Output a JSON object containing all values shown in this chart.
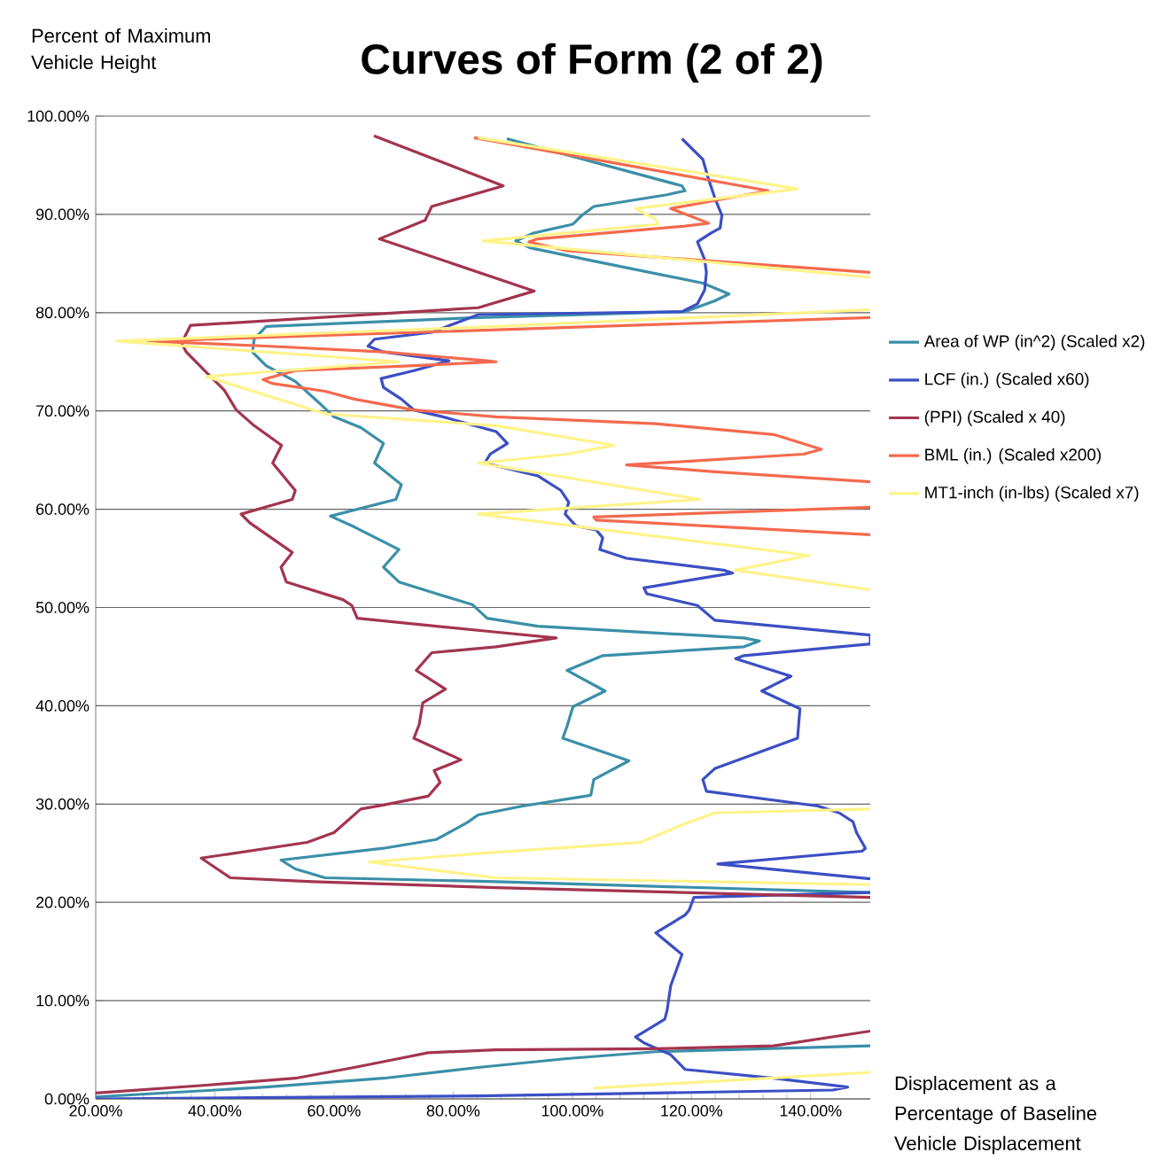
{
  "chart_data": {
    "type": "line",
    "title": "Curves of Form (2 of 2)",
    "ylabel": "Percent of Maximum Vehicle Height",
    "xlabel": "Displacement as a Percentage of Baseline Vehicle Displacement",
    "xlim": [
      20,
      150
    ],
    "ylim": [
      0,
      100
    ],
    "xticks": [
      {
        "value": 20,
        "label": "20.00%"
      },
      {
        "value": 40,
        "label": "40.00%"
      },
      {
        "value": 60,
        "label": "60.00%"
      },
      {
        "value": 80,
        "label": "80.00%"
      },
      {
        "value": 100,
        "label": "100.00%"
      },
      {
        "value": 120,
        "label": "120.00%"
      },
      {
        "value": 140,
        "label": "140.00%"
      }
    ],
    "yticks": [
      {
        "value": 0,
        "label": "0.00%"
      },
      {
        "value": 10,
        "label": "10.00%"
      },
      {
        "value": 20,
        "label": "20.00%"
      },
      {
        "value": 30,
        "label": "30.00%"
      },
      {
        "value": 40,
        "label": "40.00%"
      },
      {
        "value": 50,
        "label": "50.00%"
      },
      {
        "value": 60,
        "label": "60.00%"
      },
      {
        "value": 70,
        "label": "70.00%"
      },
      {
        "value": 80,
        "label": "80.00%"
      },
      {
        "value": 90,
        "label": "90.00%"
      },
      {
        "value": 100,
        "label": "100.00%"
      }
    ],
    "grid": "y",
    "legend": "right",
    "series": [
      {
        "name": "Area of WP (in^2) (Scaled x2)",
        "color": "#3a8fa8",
        "x": [
          89.0,
          118.4,
          118.9,
          115.9,
          103.6,
          101.6,
          100.1,
          93.5,
          90.5,
          92.9,
          104.0,
          121.9,
          126.3,
          123.9,
          118.9,
          84.2,
          48.6,
          46.6,
          46.3,
          48.6,
          53.5,
          57.9,
          60.0,
          64.5,
          68.3,
          66.8,
          71.3,
          70.4,
          59.4,
          63.4,
          70.9,
          68.3,
          70.9,
          78.3,
          83.2,
          85.7,
          94.2,
          128.8,
          131.4,
          128.8,
          105.1,
          99.1,
          105.5,
          100.1,
          99.1,
          98.4,
          109.5,
          103.6,
          103.1,
          91.7,
          84.2,
          82.3,
          77.2,
          68.3,
          51.1,
          53.5,
          58.5,
          87.2,
          150,
          null,
          150,
          114.0,
          99.1,
          84.2,
          68.3,
          48.6,
          20
        ],
        "values": [
          97.7,
          92.9,
          92.4,
          92.0,
          90.8,
          89.9,
          89.0,
          88.1,
          87.3,
          86.6,
          85.2,
          83.0,
          81.9,
          81.2,
          80.1,
          79.5,
          78.6,
          77.3,
          76.0,
          74.6,
          73.0,
          70.6,
          69.4,
          68.3,
          66.7,
          64.7,
          62.5,
          61.0,
          59.3,
          58.2,
          55.9,
          54.1,
          52.6,
          51.2,
          50.3,
          48.9,
          48.1,
          46.9,
          46.6,
          46.0,
          45.1,
          43.6,
          41.5,
          39.9,
          37.9,
          36.7,
          34.4,
          32.5,
          30.9,
          29.8,
          28.9,
          28.1,
          26.4,
          25.5,
          24.3,
          23.4,
          22.5,
          22.1,
          21.0,
          null,
          5.4,
          4.8,
          4.1,
          3.2,
          2.1,
          1.2,
          0.2
        ]
      },
      {
        "name": "LCF (in.) (Scaled x60)",
        "color": "#3b4fc4",
        "x": [
          118.4,
          121.9,
          122.9,
          123.9,
          125.1,
          124.8,
          123.3,
          121.0,
          122.2,
          122.5,
          122.2,
          121.0,
          118.4,
          84.2,
          76.4,
          66.8,
          65.7,
          68.3,
          79.3,
          73.4,
          67.9,
          68.3,
          71.3,
          73.4,
          78.3,
          87.2,
          89.1,
          86.2,
          85.3,
          94.2,
          98.1,
          99.4,
          98.8,
          100.6,
          104.0,
          105.1,
          104.6,
          109.1,
          125.4,
          126.9,
          112.0,
          112.5,
          121.0,
          123.9,
          150,
          150,
          128.8,
          127.4,
          136.7,
          131.8,
          138.2,
          137.8,
          123.9,
          121.9,
          122.5,
          141.2,
          144.8,
          147.1,
          147.7,
          149.2,
          148.6,
          124.4,
          150,
          null,
          150,
          120.4,
          119.6,
          118.9,
          114.0,
          118.4,
          116.5,
          115.9,
          115.5,
          110.6,
          112.0,
          116.5,
          118.9,
          133.8,
          146.2,
          143.7,
          114.0,
          84.2,
          20
        ],
        "values": [
          97.7,
          95.6,
          93.5,
          91.7,
          89.9,
          88.6,
          88.1,
          87.2,
          85.4,
          84.1,
          82.3,
          80.9,
          80.1,
          79.8,
          78.0,
          77.3,
          76.6,
          76.0,
          75.1,
          74.1,
          73.3,
          72.4,
          71.2,
          70.1,
          69.4,
          67.9,
          66.7,
          65.6,
          64.7,
          63.4,
          61.9,
          60.7,
          59.5,
          58.3,
          57.9,
          57.1,
          55.9,
          55.0,
          53.8,
          53.5,
          52.0,
          51.4,
          50.2,
          48.7,
          47.2,
          46.3,
          45.1,
          44.8,
          43.0,
          41.5,
          39.7,
          36.7,
          33.6,
          32.5,
          31.3,
          29.8,
          29.1,
          28.2,
          27.1,
          25.5,
          25.2,
          23.9,
          22.4,
          null,
          21.0,
          20.5,
          19.2,
          18.7,
          16.9,
          14.7,
          11.5,
          9.0,
          8.1,
          6.3,
          5.7,
          4.5,
          3.0,
          2.1,
          1.2,
          0.9,
          0.6,
          0.3,
          0
        ]
      },
      {
        "name": "(PPI) (Scaled x 40)",
        "color": "#a3344f",
        "x": [
          66.7,
          88.4,
          76.4,
          75.3,
          67.6,
          93.6,
          84.2,
          35.9,
          34.4,
          35.2,
          38.6,
          41.6,
          43.6,
          46.6,
          51.2,
          49.7,
          53.5,
          53.0,
          44.4,
          45.9,
          53.0,
          51.1,
          52.0,
          61.5,
          63.0,
          63.9,
          87.2,
          97.3,
          87.2,
          76.4,
          73.8,
          78.7,
          74.9,
          74.3,
          73.4,
          81.3,
          76.8,
          77.8,
          75.8,
          68.3,
          64.5,
          60.0,
          55.5,
          37.7,
          42.6,
          56.4,
          87.2,
          150,
          null,
          150,
          133.8,
          114.0,
          87.2,
          75.8,
          70.9,
          63.4,
          53.5,
          38.6,
          20
        ],
        "values": [
          98.0,
          92.9,
          90.8,
          89.4,
          87.5,
          82.2,
          80.5,
          78.7,
          76.9,
          76.0,
          73.9,
          72.1,
          70.1,
          68.5,
          66.5,
          64.7,
          61.9,
          61.0,
          59.5,
          58.6,
          55.6,
          54.1,
          52.6,
          50.8,
          50.2,
          48.9,
          47.5,
          46.9,
          46.0,
          45.4,
          43.6,
          41.7,
          40.3,
          38.1,
          36.7,
          34.5,
          33.4,
          32.2,
          30.8,
          29.9,
          29.5,
          27.1,
          26.1,
          24.5,
          22.5,
          22.1,
          21.5,
          20.5,
          null,
          6.9,
          5.4,
          5.1,
          5.0,
          4.7,
          4.1,
          3.2,
          2.1,
          1.4,
          0.6
        ]
      },
      {
        "name": "BML (in.) (Scaled x200)",
        "color": "#f46a4e",
        "x": [
          83.5,
          132.9,
          116.5,
          122.9,
          118.9,
          94.2,
          92.7,
          99.1,
          150,
          null,
          150,
          28.8,
          48.6,
          68.3,
          85.7,
          87.2,
          73.4,
          53.5,
          48.1,
          49.6,
          58.5,
          63.4,
          73.4,
          87.2,
          114.0,
          133.8,
          141.8,
          138.8,
          109.1,
          123.9,
          150,
          null,
          150,
          103.6,
          104.0,
          150
        ],
        "values": [
          97.8,
          92.4,
          90.6,
          89.1,
          88.8,
          87.5,
          87.2,
          86.3,
          84.1,
          null,
          79.5,
          77.1,
          76.6,
          76.0,
          75.1,
          75.0,
          74.6,
          74.1,
          73.2,
          72.8,
          72.0,
          71.2,
          70.1,
          69.4,
          68.7,
          67.6,
          66.1,
          65.6,
          64.5,
          63.8,
          62.8,
          null,
          60.2,
          59.2,
          58.9,
          57.4
        ]
      },
      {
        "name": "MT1-inch (in-lbs) (Scaled x7)",
        "color": "#fff38a",
        "x": [
          84.2,
          137.8,
          110.6,
          114.0,
          114.4,
          85.0,
          150,
          null,
          150,
          87.2,
          23.6,
          70.9,
          38.6,
          58.5,
          87.2,
          107.0,
          99.1,
          84.2,
          121.4,
          84.2,
          139.7,
          127.4,
          150,
          null,
          150,
          123.9,
          118.9,
          111.4,
          87.2,
          65.9,
          87.2,
          150,
          null,
          103.6,
          150
        ],
        "values": [
          97.8,
          92.6,
          90.6,
          89.5,
          89.0,
          87.3,
          83.6,
          null,
          80.3,
          78.6,
          77.1,
          75.0,
          73.5,
          69.7,
          68.5,
          66.5,
          65.6,
          64.7,
          61.0,
          59.5,
          55.3,
          53.8,
          51.8,
          null,
          29.5,
          29.1,
          28.0,
          26.1,
          25.1,
          24.1,
          22.5,
          21.8,
          null,
          1.1,
          2.7
        ]
      }
    ]
  }
}
